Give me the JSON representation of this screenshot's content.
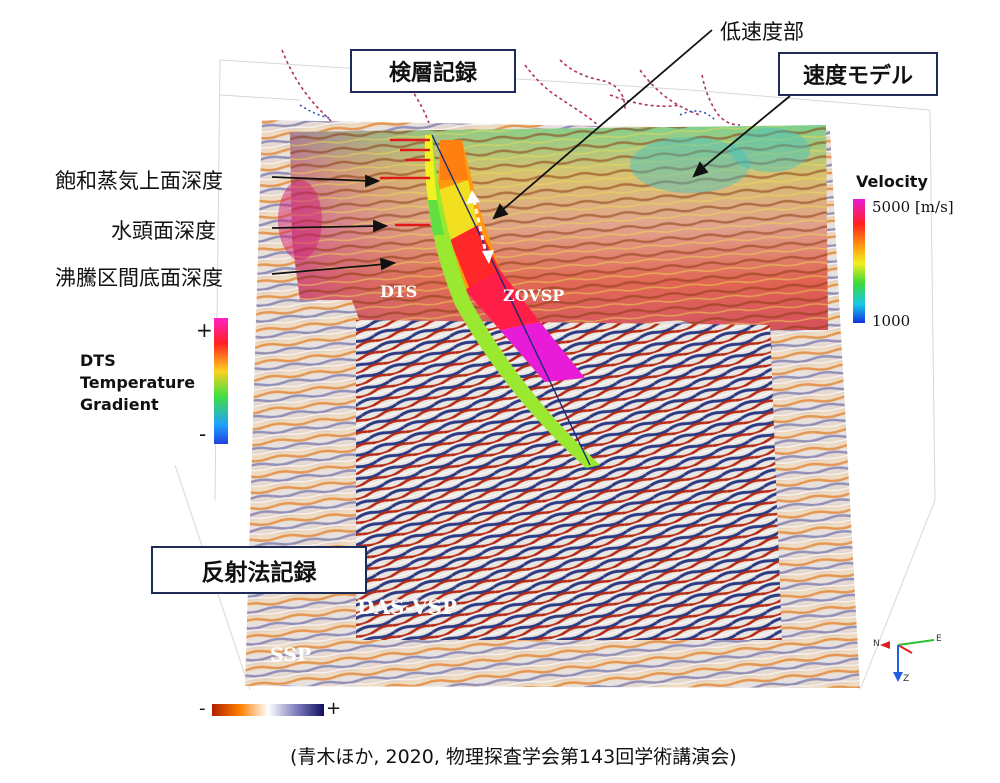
{
  "labels": {
    "logging_record": "検層記録",
    "velocity_model": "速度モデル",
    "low_velocity": "低速度部",
    "reflection_record": "反射法記録",
    "saturated_steam_depth": "飽和蒸気上面深度",
    "water_head_depth": "水頭面深度",
    "boiling_interval_bottom": "沸騰区間底面深度",
    "dts": "DTS",
    "zovsp": "ZOVSP",
    "das_vsp": "DAS-VSP",
    "ssp": "SSP"
  },
  "velocity_legend": {
    "title": "Velocity",
    "max_label": "5000 [m/s]",
    "min_label": "1000"
  },
  "dts_legend": {
    "plus": "+",
    "minus": "-",
    "line1": "DTS",
    "line2": "Temperature",
    "line3": "Gradient"
  },
  "seismic_legend": {
    "minus": "-",
    "plus": "+"
  },
  "axes_triad": {
    "n": "N",
    "e": "E",
    "z": "Z"
  },
  "citation": "(青木ほか, 2020, 物理探査学会第143回学術講演会)",
  "colors": {
    "velocity_scale": [
      "#e81cd8",
      "#ff2020",
      "#ff9a10",
      "#f2f020",
      "#3ed83a",
      "#18c8e8",
      "#1030e0"
    ],
    "dts_scale": [
      "#ff20c8",
      "#ff2020",
      "#ffd020",
      "#40e040",
      "#20a0ff",
      "#2040e0"
    ],
    "seismic_scale": [
      "#b02000",
      "#ff8000",
      "#ffffff",
      "#8080c0",
      "#101060"
    ],
    "label_border": "#1f2a57"
  }
}
